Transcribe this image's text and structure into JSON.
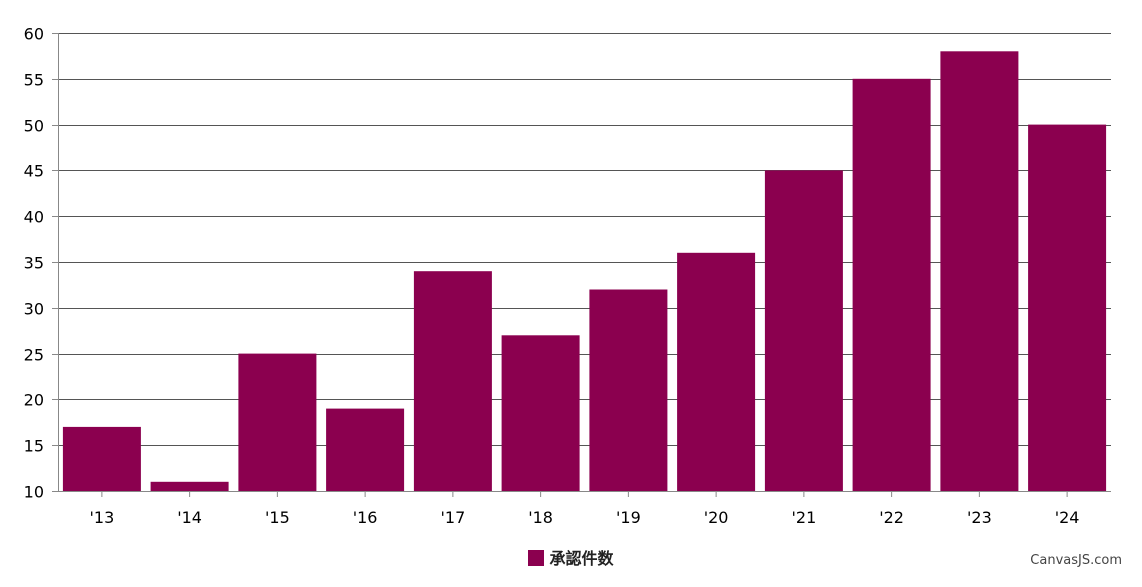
{
  "chart_data": {
    "type": "bar",
    "categories": [
      "'13",
      "'14",
      "'15",
      "'16",
      "'17",
      "'18",
      "'19",
      "'20",
      "'21",
      "'22",
      "'23",
      "'24"
    ],
    "series": [
      {
        "name": "承認件数",
        "values": [
          17,
          11,
          25,
          19,
          34,
          27,
          32,
          36,
          45,
          55,
          58,
          50
        ],
        "color": "#8B004F"
      }
    ],
    "ylim": [
      10,
      60
    ],
    "y_ticks": [
      10,
      15,
      20,
      25,
      30,
      35,
      40,
      45,
      50,
      55,
      60
    ],
    "grid": true,
    "legend_position": "bottom-center",
    "gridline_color": "#555555",
    "axis_color": "#888888"
  },
  "credit": "CanvasJS.com"
}
